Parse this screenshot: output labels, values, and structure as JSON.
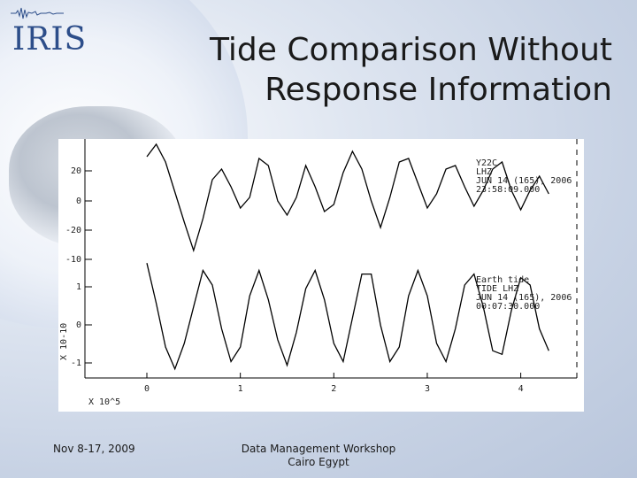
{
  "slide": {
    "title_line1": "Tide Comparison Without",
    "title_line2": "Response Information",
    "footer_date": "Nov 8-17, 2009",
    "footer_event_line1": "Data Management Workshop",
    "footer_event_line2": "Cairo Egypt",
    "logo_text": "IRIS",
    "colors": {
      "title": "#1a1a1a",
      "logo": "#2d4e8a",
      "trace": "#000000",
      "plot_bg": "#ffffff"
    }
  },
  "chart_data": [
    {
      "type": "line",
      "series": [
        {
          "name": "",
          "x": [
            0.0,
            0.1,
            0.2,
            0.3,
            0.4,
            0.5,
            0.6,
            0.7,
            0.8,
            0.9,
            1.0,
            1.1,
            1.2,
            1.3,
            1.4,
            1.5,
            1.6,
            1.7,
            1.8,
            1.9,
            2.0,
            2.1,
            2.2,
            2.3,
            2.4,
            2.5,
            2.6,
            2.7,
            2.8,
            2.9,
            3.0,
            3.1,
            3.2,
            3.3,
            3.4,
            3.5,
            3.6,
            3.7,
            3.8,
            3.9,
            4.0,
            4.1,
            4.2,
            4.3
          ],
          "values": [
            25,
            32,
            22,
            5,
            -12,
            -28,
            -10,
            12,
            18,
            8,
            -4,
            2,
            24,
            20,
            0,
            -8,
            2,
            20,
            8,
            -6,
            -2,
            16,
            28,
            18,
            0,
            -15,
            2,
            22,
            24,
            10,
            -4,
            4,
            18,
            20,
            8,
            -3,
            6,
            18,
            22,
            6,
            -5,
            6,
            14,
            4
          ]
        }
      ],
      "labels": [
        "Y22C",
        "LHZ",
        "JUN 14 (165), 2006",
        "23:58:09.000"
      ],
      "y_ticks": [
        "20",
        "0",
        "-20"
      ],
      "ylim": [
        -30,
        35
      ]
    },
    {
      "type": "line",
      "series": [
        {
          "name": "",
          "x": [
            0.0,
            0.1,
            0.2,
            0.3,
            0.4,
            0.5,
            0.6,
            0.7,
            0.8,
            0.9,
            1.0,
            1.1,
            1.2,
            1.3,
            1.4,
            1.5,
            1.6,
            1.7,
            1.8,
            1.9,
            2.0,
            2.1,
            2.2,
            2.3,
            2.4,
            2.5,
            2.6,
            2.7,
            2.8,
            2.9,
            3.0,
            3.1,
            3.2,
            3.3,
            3.4,
            3.5,
            3.6,
            3.7,
            3.8,
            3.9,
            4.0,
            4.1,
            4.2,
            4.3
          ],
          "values": [
            1.5,
            0.4,
            -0.8,
            -1.4,
            -0.7,
            0.3,
            1.3,
            0.9,
            -0.3,
            -1.2,
            -0.8,
            0.6,
            1.3,
            0.5,
            -0.6,
            -1.3,
            -0.4,
            0.8,
            1.3,
            0.5,
            -0.7,
            -1.2,
            0.0,
            1.2,
            1.2,
            -0.2,
            -1.2,
            -0.8,
            0.6,
            1.3,
            0.6,
            -0.7,
            -1.2,
            -0.3,
            0.9,
            1.2,
            0.3,
            -0.9,
            -1.0,
            0.2,
            1.1,
            0.9,
            -0.3,
            -0.9
          ]
        }
      ],
      "labels": [
        "Earth tide",
        "TIDE  LHZ",
        "JUN 14 (165), 2006",
        "00:07:30.000"
      ],
      "y_ticks": [
        "-10",
        "1",
        "0",
        "-1"
      ],
      "ylim": [
        -1.6,
        1.7
      ]
    }
  ],
  "axis": {
    "x_ticks": [
      "0",
      "1",
      "2",
      "3",
      "4"
    ],
    "x_unit": "X 10^5",
    "y_unit": "X 10-10"
  }
}
